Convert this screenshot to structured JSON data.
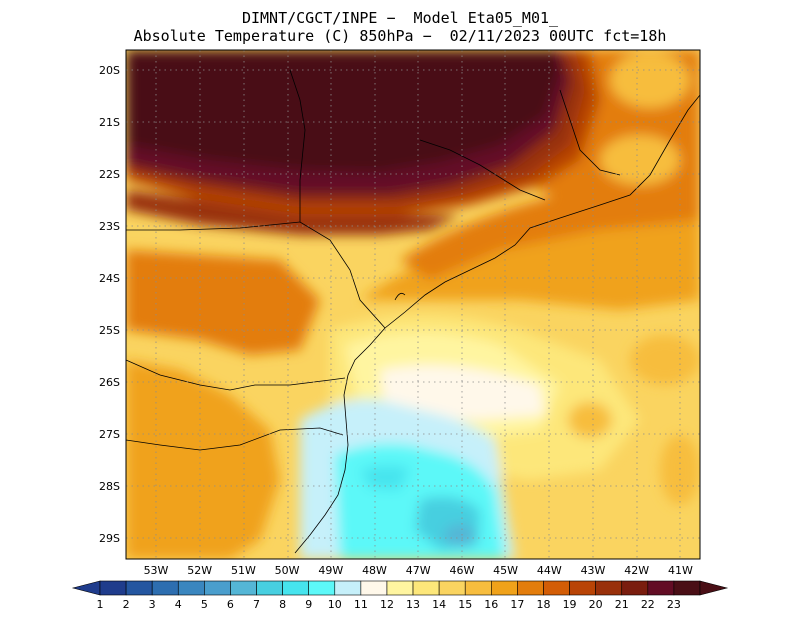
{
  "header": {
    "line1": "DIMNT/CGCT/INPE −  Model Eta05_M01_",
    "line2": "Absolute Temperature (C) 850hPa −  02/11/2023 00UTC fct=18h"
  },
  "map": {
    "lat_labels": [
      "20S",
      "21S",
      "22S",
      "23S",
      "24S",
      "25S",
      "26S",
      "27S",
      "28S",
      "29S"
    ],
    "lon_labels": [
      "53W",
      "52W",
      "51W",
      "50W",
      "49W",
      "48W",
      "47W",
      "46W",
      "45W",
      "44W",
      "43W",
      "42W",
      "41W"
    ],
    "gridlines": true,
    "field": "temperature_850hPa"
  },
  "colorbar": {
    "labels": [
      "1",
      "2",
      "3",
      "4",
      "5",
      "6",
      "7",
      "8",
      "9",
      "10",
      "11",
      "12",
      "13",
      "14",
      "15",
      "16",
      "17",
      "18",
      "19",
      "20",
      "21",
      "22",
      "23"
    ],
    "colors": [
      "#1f3c8c",
      "#2456a0",
      "#2d6eb0",
      "#3a86bf",
      "#4a9ecd",
      "#54b6d6",
      "#47cfe0",
      "#46e4ee",
      "#5cf8f8",
      "#c6f0fa",
      "#fff8ea",
      "#fff5a0",
      "#fde77a",
      "#fad460",
      "#f7bd3e",
      "#f0a21a",
      "#e37d0c",
      "#d35d06",
      "#b94406",
      "#99300a",
      "#7a1d0e",
      "#630d25",
      "#4a0f16"
    ],
    "under_color": "#1f3c8c",
    "over_color": "#4a0f16"
  }
}
